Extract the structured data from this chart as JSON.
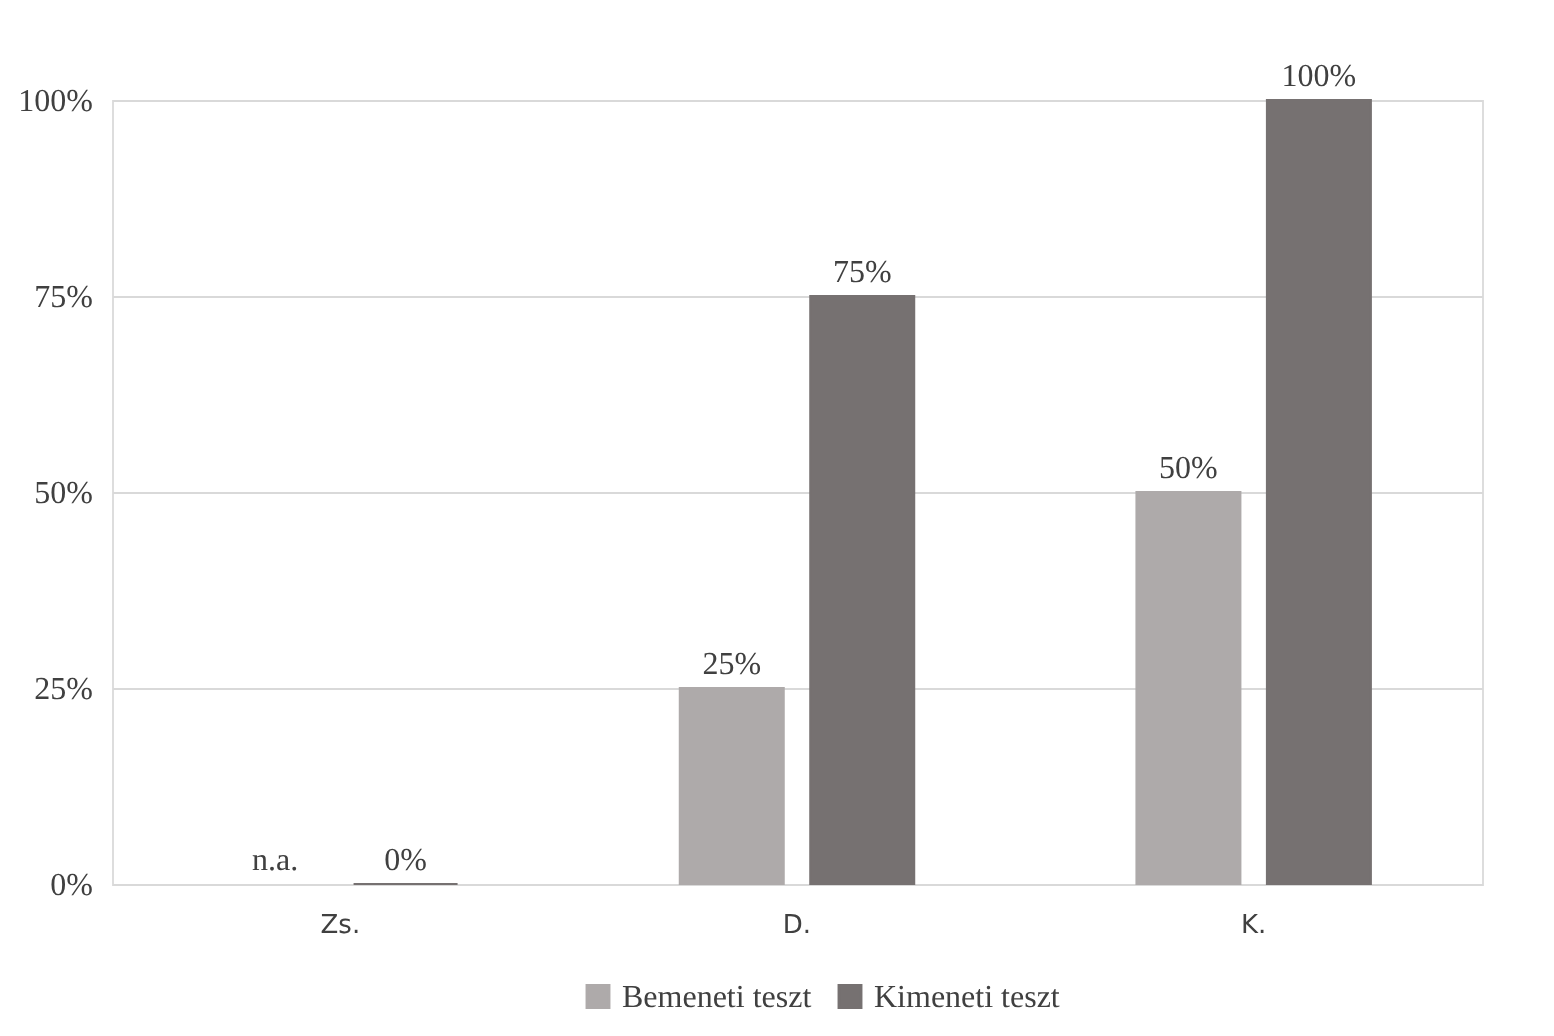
{
  "chart_data": {
    "type": "bar",
    "categories": [
      "Zs.",
      "D.",
      "K."
    ],
    "series": [
      {
        "name": "Bemeneti teszt",
        "color": "#aeaaaa",
        "values": [
          null,
          25,
          50
        ],
        "value_labels": [
          "n.a.",
          "25%",
          "50%"
        ]
      },
      {
        "name": "Kimeneti teszt",
        "color": "#767171",
        "values": [
          0,
          75,
          100
        ],
        "value_labels": [
          "0%",
          "75%",
          "100%"
        ]
      }
    ],
    "ylim": [
      0,
      100
    ],
    "yticks": [
      {
        "value": 0,
        "label": "0%"
      },
      {
        "value": 25,
        "label": "25%"
      },
      {
        "value": 50,
        "label": "50%"
      },
      {
        "value": 75,
        "label": "75%"
      },
      {
        "value": 100,
        "label": "100%"
      }
    ],
    "grid": "y",
    "legend": "bottom"
  }
}
